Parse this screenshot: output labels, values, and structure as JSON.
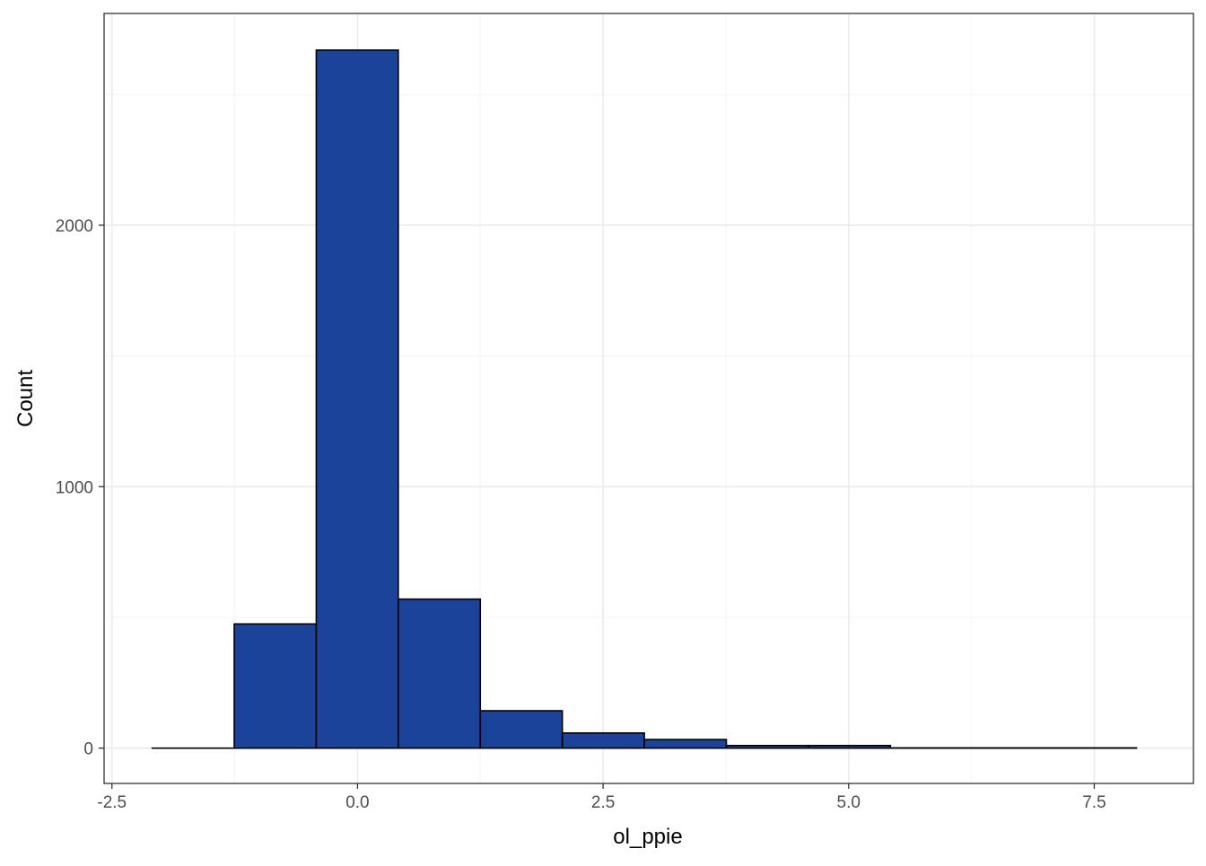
{
  "chart_data": {
    "type": "bar",
    "subtype": "histogram",
    "title": "",
    "xlabel": "ol_ppie",
    "ylabel": "Count",
    "xlim": [
      -2.58,
      8.51
    ],
    "ylim": [
      -135,
      2810
    ],
    "x_ticks": [
      -2.5,
      0.0,
      2.5,
      5.0,
      7.5
    ],
    "x_tick_labels": [
      "-2.5",
      "0.0",
      "2.5",
      "5.0",
      "7.5"
    ],
    "y_ticks": [
      0,
      1000,
      2000
    ],
    "y_tick_labels": [
      "0",
      "1000",
      "2000"
    ],
    "x_minor_gridlines": [
      -1.25,
      1.25,
      3.75,
      6.25
    ],
    "y_minor_gridlines": [
      500,
      1500,
      2500
    ],
    "grid": true,
    "theme": "bw",
    "bin_width": 0.835,
    "bins": [
      {
        "x0": -2.09,
        "x1": -1.255,
        "count": 0
      },
      {
        "x0": -1.255,
        "x1": -0.42,
        "count": 475
      },
      {
        "x0": -0.42,
        "x1": 0.415,
        "count": 2670
      },
      {
        "x0": 0.415,
        "x1": 1.25,
        "count": 570
      },
      {
        "x0": 1.25,
        "x1": 2.085,
        "count": 143
      },
      {
        "x0": 2.085,
        "x1": 2.92,
        "count": 58
      },
      {
        "x0": 2.92,
        "x1": 3.755,
        "count": 33
      },
      {
        "x0": 3.755,
        "x1": 4.59,
        "count": 10
      },
      {
        "x0": 4.59,
        "x1": 5.425,
        "count": 10
      },
      {
        "x0": 5.425,
        "x1": 6.26,
        "count": 1
      },
      {
        "x0": 6.26,
        "x1": 7.095,
        "count": 1
      },
      {
        "x0": 7.095,
        "x1": 7.93,
        "count": 1
      }
    ],
    "colors": {
      "bar_fill": "#1a4399",
      "bar_stroke": "#000000",
      "panel_border": "#333333",
      "grid_major": "#ebebeb",
      "grid_minor": "#f5f5f5",
      "tick_label": "#4d4d4d",
      "axis_title": "#000000"
    }
  }
}
